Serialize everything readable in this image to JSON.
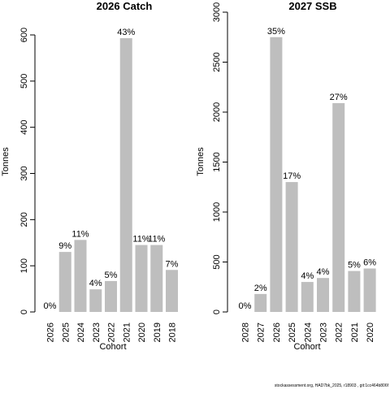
{
  "chart_data": [
    {
      "type": "bar",
      "title": "2026 Catch",
      "xlabel": "Cohort",
      "ylabel": "Tonnes",
      "ylim": [
        0,
        600
      ],
      "yticks": [
        0,
        100,
        200,
        300,
        400,
        500,
        600
      ],
      "categories": [
        "2026",
        "2025",
        "2024",
        "2023",
        "2022",
        "2021",
        "2020",
        "2019",
        "2018"
      ],
      "values": [
        0,
        130,
        156,
        49,
        67,
        593,
        145,
        145,
        91
      ],
      "labels": [
        "0%",
        "9%",
        "11%",
        "4%",
        "5%",
        "43%",
        "11%",
        "11%",
        "7%"
      ],
      "bar_color": "#bebebe"
    },
    {
      "type": "bar",
      "title": "2027 SSB",
      "xlabel": "Cohort",
      "ylabel": "Tonnes",
      "ylim": [
        0,
        3000
      ],
      "yticks": [
        0,
        500,
        1000,
        1500,
        2000,
        2500,
        3000
      ],
      "categories": [
        "2028",
        "2027",
        "2026",
        "2025",
        "2024",
        "2023",
        "2022",
        "2021",
        "2020"
      ],
      "values": [
        0,
        180,
        2750,
        1300,
        300,
        340,
        2090,
        410,
        435
      ],
      "labels": [
        "0%",
        "2%",
        "35%",
        "17%",
        "4%",
        "4%",
        "27%",
        "5%",
        "6%"
      ],
      "bar_color": "#bebebe"
    }
  ],
  "footer": "stockassessment.org, HAD7bk_2025, r18903 , git:1cc464b806f"
}
